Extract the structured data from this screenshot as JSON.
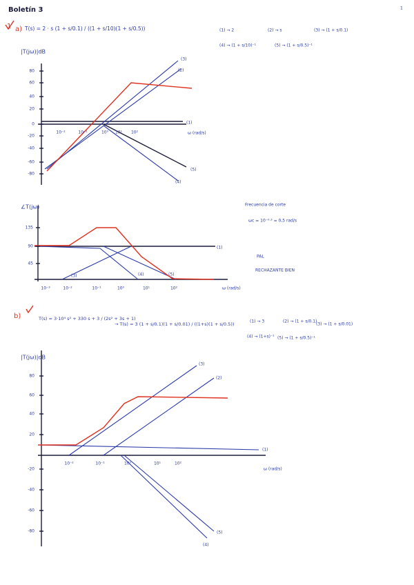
{
  "header": {
    "title": "Boletín 3",
    "page_number": "1"
  },
  "part_a": {
    "number": "1",
    "label": "a)",
    "transfer_function": "T(s) = 2 · s (1 + s/0.1) / ((1 + s/10)(1 + s/0.5))",
    "terms": [
      "(1) → 2",
      "(2) → s",
      "(3) → (1 + s/0.1)",
      "(4) → (1 + s/10)⁻¹",
      "(5) → (1 + s/0.5)⁻¹"
    ],
    "magnitude_plot": {
      "y_label": "|T(jω)|dB",
      "yticks": [
        "80",
        "60",
        "40",
        "20",
        "0",
        "-20",
        "-40",
        "-60",
        "-80"
      ],
      "xticks": [
        "10⁻²",
        "10⁻¹",
        "10⁰",
        "10¹",
        "10²"
      ],
      "x_label": "ω (rad/s)",
      "curve_labels": [
        "(1)",
        "(2)",
        "(3)",
        "(4)",
        "(5)"
      ]
    },
    "phase_plot": {
      "y_label": "∠T(jω)",
      "yticks": [
        "135",
        "90",
        "45"
      ],
      "xticks": [
        "10⁻³",
        "10⁻²",
        "10⁻¹",
        "10⁰",
        "10¹",
        "10²"
      ],
      "x_label": "ω (rad/s)",
      "curve_labels": [
        "(1)",
        "(3)",
        "(4)",
        "(5)"
      ]
    },
    "notes": [
      "Frecuencia de corte",
      "ωc = 10⁻⁰·³ = 0,5 rad/s",
      "PAL",
      "RECHAZANTE BIEN"
    ]
  },
  "part_b": {
    "label": "b)",
    "transfer_function": "T(s) = 3·10⁴ s² + 330 s + 3 / (2s² + 3s + 1)",
    "factored": "→ T(s) = 3 (1 + s/0.1)(1 + s/0.01) / ((1+s)(1 + s/0.5))",
    "terms": [
      "(1) → 3",
      "(2) → (1 + s/0.1)",
      "(3) → (1 + s/0.01)",
      "(4) → (1+s)⁻¹",
      "(5) → (1 + s/0.5)⁻¹"
    ],
    "magnitude_plot": {
      "y_label": "|T(jω)|dB",
      "yticks": [
        "80",
        "60",
        "40",
        "20",
        "-20",
        "-40",
        "-60",
        "-80"
      ],
      "xticks": [
        "10⁻²",
        "10⁻¹",
        "10⁰",
        "10¹",
        "10²"
      ],
      "x_label": "ω (rad/s)",
      "curve_labels": [
        "(1)",
        "(2)",
        "(3)",
        "(4)",
        "(5)"
      ]
    }
  }
}
